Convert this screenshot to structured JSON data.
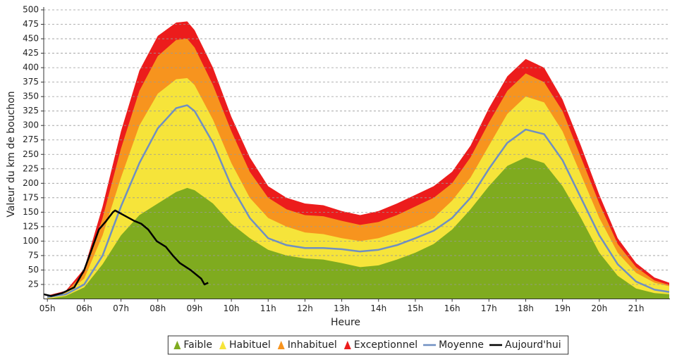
{
  "chart_data": {
    "type": "area",
    "x_label": "Heure",
    "y_label": "Valeur du  km de bouchon",
    "xlim": [
      4.9,
      21.92
    ],
    "ylim": [
      0,
      500
    ],
    "grid": true,
    "legend": "bottom",
    "xticks": [
      {
        "value": 5,
        "label": "05h"
      },
      {
        "value": 6,
        "label": "06h"
      },
      {
        "value": 7,
        "label": "07h"
      },
      {
        "value": 8,
        "label": "08h"
      },
      {
        "value": 9,
        "label": "09h"
      },
      {
        "value": 10,
        "label": "10h"
      },
      {
        "value": 11,
        "label": "11h"
      },
      {
        "value": 12,
        "label": "12h"
      },
      {
        "value": 13,
        "label": "13h"
      },
      {
        "value": 14,
        "label": "14h"
      },
      {
        "value": 15,
        "label": "15h"
      },
      {
        "value": 16,
        "label": "16h"
      },
      {
        "value": 17,
        "label": "17h"
      },
      {
        "value": 18,
        "label": "18h"
      },
      {
        "value": 19,
        "label": "19h"
      },
      {
        "value": 20,
        "label": "20h"
      },
      {
        "value": 21,
        "label": "21h"
      }
    ],
    "yticks": [
      25,
      50,
      75,
      100,
      125,
      150,
      175,
      200,
      225,
      250,
      275,
      300,
      325,
      350,
      375,
      400,
      425,
      450,
      475,
      500
    ],
    "x": [
      5,
      5.5,
      6,
      6.5,
      7,
      7.5,
      8,
      8.5,
      8.8,
      9,
      9.5,
      10,
      10.5,
      11,
      11.5,
      12,
      12.5,
      13,
      13.5,
      14,
      14.5,
      15,
      15.5,
      16,
      16.5,
      17,
      17.5,
      18,
      18.5,
      19,
      19.5,
      20,
      20.5,
      21,
      21.5,
      21.9
    ],
    "series": [
      {
        "name": "Faible",
        "color": "#7fab1f",
        "type": "area",
        "values": [
          0,
          5,
          20,
          60,
          110,
          145,
          165,
          185,
          192,
          188,
          165,
          130,
          105,
          85,
          75,
          70,
          68,
          62,
          55,
          58,
          68,
          80,
          95,
          120,
          155,
          195,
          230,
          245,
          235,
          195,
          140,
          80,
          40,
          18,
          10,
          8
        ]
      },
      {
        "name": "Habituel",
        "color": "#f6e43a",
        "type": "area",
        "values": [
          4,
          10,
          35,
          110,
          210,
          300,
          355,
          380,
          382,
          370,
          310,
          235,
          175,
          140,
          125,
          115,
          112,
          105,
          100,
          105,
          115,
          125,
          140,
          170,
          210,
          265,
          320,
          350,
          340,
          290,
          215,
          140,
          80,
          45,
          28,
          22
        ]
      },
      {
        "name": "Inhabituel",
        "color": "#f7941e",
        "type": "area",
        "values": [
          5,
          12,
          45,
          140,
          260,
          360,
          420,
          448,
          450,
          435,
          370,
          290,
          220,
          175,
          155,
          145,
          143,
          135,
          128,
          133,
          145,
          160,
          175,
          200,
          245,
          305,
          360,
          390,
          375,
          325,
          245,
          165,
          95,
          55,
          32,
          24
        ]
      },
      {
        "name": "Exceptionnel",
        "color": "#ec1c1c",
        "type": "area",
        "values": [
          6,
          14,
          52,
          160,
          290,
          395,
          455,
          478,
          480,
          465,
          400,
          315,
          245,
          195,
          175,
          165,
          162,
          152,
          145,
          152,
          165,
          180,
          195,
          220,
          265,
          330,
          385,
          415,
          400,
          345,
          265,
          180,
          105,
          62,
          37,
          28
        ]
      },
      {
        "name": "Moyenne",
        "color": "#6f8fc2",
        "type": "line",
        "values": [
          3,
          8,
          25,
          75,
          160,
          235,
          295,
          330,
          335,
          325,
          270,
          195,
          140,
          105,
          93,
          88,
          88,
          86,
          82,
          85,
          93,
          105,
          118,
          140,
          175,
          225,
          270,
          293,
          285,
          240,
          175,
          110,
          60,
          30,
          16,
          12
        ]
      },
      {
        "name": "Aujourd'hui",
        "color": "#000000",
        "type": "line",
        "x": [
          4.9,
          5.1,
          5.4,
          5.73,
          6.0,
          6.15,
          6.4,
          6.6,
          6.78,
          6.84,
          7.07,
          7.36,
          7.55,
          7.74,
          7.97,
          8.22,
          8.41,
          8.6,
          8.89,
          9.18,
          9.27,
          9.37
        ],
        "values": [
          8,
          5,
          10,
          20,
          50,
          76,
          120,
          135,
          150,
          153,
          145,
          135,
          130,
          120,
          100,
          90,
          75,
          62,
          50,
          35,
          25,
          28
        ]
      }
    ]
  }
}
